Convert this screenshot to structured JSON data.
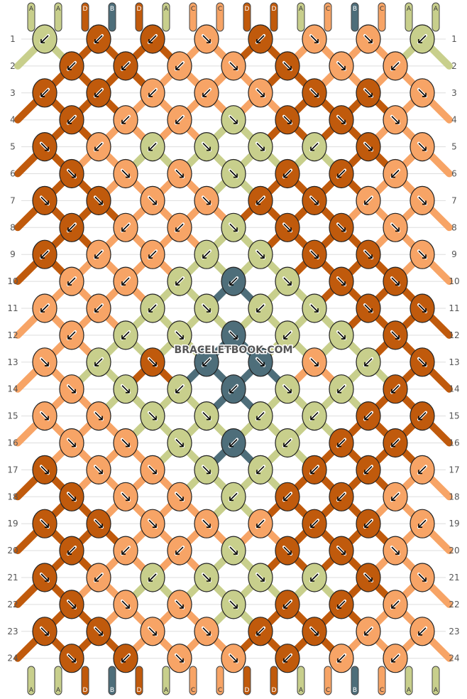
{
  "watermark": "BRACELETBOOK.COM",
  "colors": {
    "A": "#c8cf8c",
    "B": "#4e6e7a",
    "C": "#f7a466",
    "D": "#c05a0c"
  },
  "strands_top": [
    "A",
    "A",
    "D",
    "B",
    "D",
    "A",
    "C",
    "C",
    "D",
    "D",
    "A",
    "C",
    "B",
    "C",
    "A",
    "A"
  ],
  "strands_bottom": [
    "A",
    "A",
    "D",
    "B",
    "D",
    "A",
    "C",
    "C",
    "D",
    "D",
    "A",
    "C",
    "B",
    "C",
    "A",
    "A"
  ],
  "rows": [
    {
      "label": "1",
      "knots": [
        [
          "A",
          "sw"
        ],
        [
          "D",
          "sw"
        ],
        [
          "D",
          "sw"
        ],
        [
          "C",
          "se"
        ],
        [
          "D",
          "sw"
        ],
        [
          "C",
          "se"
        ],
        [
          "C",
          "se"
        ],
        [
          "A",
          "sw"
        ]
      ]
    },
    {
      "label": "2",
      "knots": [
        [
          "D",
          "sw"
        ],
        [
          "D",
          "sw"
        ],
        [
          "C",
          "sw"
        ],
        [
          "C",
          "se"
        ],
        [
          "D",
          "se"
        ],
        [
          "C",
          "se"
        ],
        [
          "C",
          "sw"
        ]
      ]
    },
    {
      "label": "3",
      "knots": [
        [
          "D",
          "sw"
        ],
        [
          "D",
          "sw"
        ],
        [
          "C",
          "sw"
        ],
        [
          "C",
          "sw"
        ],
        [
          "C",
          "se"
        ],
        [
          "D",
          "se"
        ],
        [
          "D",
          "se"
        ],
        [
          "C",
          "se"
        ]
      ]
    },
    {
      "label": "4",
      "knots": [
        [
          "D",
          "sw"
        ],
        [
          "C",
          "sw"
        ],
        [
          "C",
          "sw"
        ],
        [
          "A",
          "se"
        ],
        [
          "D",
          "se"
        ],
        [
          "D",
          "se"
        ],
        [
          "C",
          "se"
        ]
      ]
    },
    {
      "label": "5",
      "knots": [
        [
          "D",
          "se"
        ],
        [
          "C",
          "sw"
        ],
        [
          "A",
          "sw"
        ],
        [
          "A",
          "se"
        ],
        [
          "A",
          "se"
        ],
        [
          "A",
          "sw"
        ],
        [
          "D",
          "se"
        ],
        [
          "C",
          "se"
        ]
      ]
    },
    {
      "label": "6",
      "knots": [
        [
          "D",
          "se"
        ],
        [
          "C",
          "se"
        ],
        [
          "C",
          "se"
        ],
        [
          "A",
          "se"
        ],
        [
          "D",
          "sw"
        ],
        [
          "D",
          "sw"
        ],
        [
          "C",
          "sw"
        ]
      ]
    },
    {
      "label": "7",
      "knots": [
        [
          "D",
          "se"
        ],
        [
          "D",
          "se"
        ],
        [
          "C",
          "se"
        ],
        [
          "C",
          "se"
        ],
        [
          "D",
          "sw"
        ],
        [
          "D",
          "se"
        ],
        [
          "C",
          "sw"
        ],
        [
          "C",
          "se"
        ]
      ]
    },
    {
      "label": "8",
      "knots": [
        [
          "D",
          "sw"
        ],
        [
          "C",
          "sw"
        ],
        [
          "C",
          "sw"
        ],
        [
          "A",
          "se"
        ],
        [
          "D",
          "se"
        ],
        [
          "D",
          "se"
        ],
        [
          "C",
          "se"
        ]
      ]
    },
    {
      "label": "9",
      "knots": [
        [
          "D",
          "sw"
        ],
        [
          "C",
          "sw"
        ],
        [
          "C",
          "sw"
        ],
        [
          "A",
          "sw"
        ],
        [
          "A",
          "se"
        ],
        [
          "D",
          "se"
        ],
        [
          "D",
          "se"
        ],
        [
          "C",
          "se"
        ]
      ]
    },
    {
      "label": "10",
      "knots": [
        [
          "C",
          "sw"
        ],
        [
          "C",
          "sw"
        ],
        [
          "A",
          "sw"
        ],
        [
          "B",
          "sw"
        ],
        [
          "A",
          "se"
        ],
        [
          "D",
          "se"
        ],
        [
          "D",
          "se"
        ]
      ]
    },
    {
      "label": "11",
      "knots": [
        [
          "C",
          "sw"
        ],
        [
          "C",
          "sw"
        ],
        [
          "A",
          "sw"
        ],
        [
          "A",
          "se"
        ],
        [
          "A",
          "sw"
        ],
        [
          "A",
          "se"
        ],
        [
          "D",
          "se"
        ],
        [
          "D",
          "se"
        ]
      ]
    },
    {
      "label": "12",
      "knots": [
        [
          "C",
          "sw"
        ],
        [
          "A",
          "sw"
        ],
        [
          "A",
          "se"
        ],
        [
          "B",
          "se"
        ],
        [
          "A",
          "sw"
        ],
        [
          "A",
          "se"
        ],
        [
          "D",
          "se"
        ]
      ]
    },
    {
      "label": "13",
      "knots": [
        [
          "C",
          "se"
        ],
        [
          "A",
          "sw"
        ],
        [
          "D",
          "se"
        ],
        [
          "B",
          "sw"
        ],
        [
          "B",
          "se"
        ],
        [
          "C",
          "se"
        ],
        [
          "A",
          "sw"
        ],
        [
          "D",
          "se"
        ]
      ]
    },
    {
      "label": "14",
      "knots": [
        [
          "C",
          "se"
        ],
        [
          "A",
          "se"
        ],
        [
          "A",
          "sw"
        ],
        [
          "B",
          "sw"
        ],
        [
          "A",
          "se"
        ],
        [
          "A",
          "sw"
        ],
        [
          "D",
          "sw"
        ]
      ]
    },
    {
      "label": "15",
      "knots": [
        [
          "C",
          "se"
        ],
        [
          "C",
          "se"
        ],
        [
          "A",
          "se"
        ],
        [
          "A",
          "se"
        ],
        [
          "A",
          "sw"
        ],
        [
          "A",
          "sw"
        ],
        [
          "D",
          "sw"
        ],
        [
          "D",
          "sw"
        ]
      ]
    },
    {
      "label": "16",
      "knots": [
        [
          "C",
          "se"
        ],
        [
          "C",
          "se"
        ],
        [
          "A",
          "se"
        ],
        [
          "B",
          "sw"
        ],
        [
          "A",
          "sw"
        ],
        [
          "D",
          "sw"
        ],
        [
          "D",
          "sw"
        ]
      ]
    },
    {
      "label": "17",
      "knots": [
        [
          "D",
          "se"
        ],
        [
          "C",
          "se"
        ],
        [
          "C",
          "se"
        ],
        [
          "A",
          "se"
        ],
        [
          "A",
          "sw"
        ],
        [
          "D",
          "sw"
        ],
        [
          "D",
          "sw"
        ],
        [
          "C",
          "sw"
        ]
      ]
    },
    {
      "label": "18",
      "knots": [
        [
          "D",
          "se"
        ],
        [
          "C",
          "se"
        ],
        [
          "C",
          "se"
        ],
        [
          "A",
          "sw"
        ],
        [
          "D",
          "sw"
        ],
        [
          "D",
          "sw"
        ],
        [
          "C",
          "sw"
        ]
      ]
    },
    {
      "label": "19",
      "knots": [
        [
          "D",
          "se"
        ],
        [
          "D",
          "se"
        ],
        [
          "C",
          "se"
        ],
        [
          "C",
          "se"
        ],
        [
          "C",
          "sw"
        ],
        [
          "D",
          "sw"
        ],
        [
          "D",
          "sw"
        ],
        [
          "C",
          "sw"
        ]
      ]
    },
    {
      "label": "20",
      "knots": [
        [
          "D",
          "sw"
        ],
        [
          "C",
          "sw"
        ],
        [
          "C",
          "sw"
        ],
        [
          "A",
          "se"
        ],
        [
          "D",
          "se"
        ],
        [
          "D",
          "se"
        ],
        [
          "C",
          "se"
        ]
      ]
    },
    {
      "label": "21",
      "knots": [
        [
          "D",
          "se"
        ],
        [
          "C",
          "sw"
        ],
        [
          "A",
          "sw"
        ],
        [
          "A",
          "se"
        ],
        [
          "A",
          "se"
        ],
        [
          "A",
          "sw"
        ],
        [
          "D",
          "se"
        ],
        [
          "C",
          "se"
        ]
      ]
    },
    {
      "label": "22",
      "knots": [
        [
          "D",
          "se"
        ],
        [
          "C",
          "se"
        ],
        [
          "C",
          "se"
        ],
        [
          "A",
          "se"
        ],
        [
          "D",
          "sw"
        ],
        [
          "D",
          "sw"
        ],
        [
          "C",
          "sw"
        ]
      ]
    },
    {
      "label": "23",
      "knots": [
        [
          "D",
          "se"
        ],
        [
          "D",
          "se"
        ],
        [
          "C",
          "se"
        ],
        [
          "C",
          "se"
        ],
        [
          "D",
          "sw"
        ],
        [
          "D",
          "se"
        ],
        [
          "C",
          "sw"
        ],
        [
          "C",
          "sw"
        ]
      ]
    },
    {
      "label": "24",
      "knots": [
        [
          "D",
          "se"
        ],
        [
          "D",
          "sw"
        ],
        [
          "C",
          "se"
        ],
        [
          "C",
          "se"
        ],
        [
          "D",
          "sw"
        ],
        [
          "C",
          "sw"
        ],
        [
          "C",
          "sw"
        ]
      ]
    }
  ]
}
